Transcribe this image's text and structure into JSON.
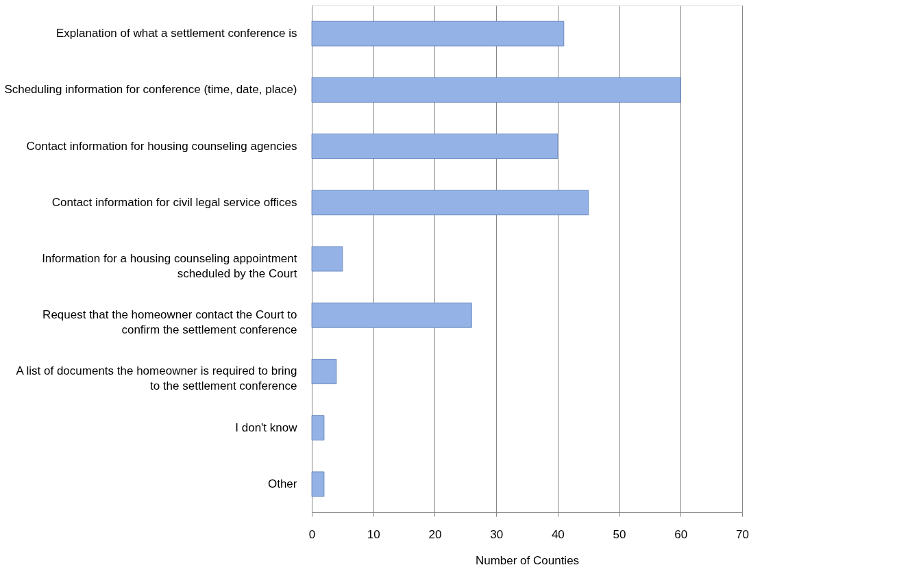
{
  "chart_data": {
    "type": "bar",
    "orientation": "horizontal",
    "xlabel": "Number of Counties",
    "categories": [
      "Explanation of what a settlement conference is",
      "Scheduling information for conference (time, date, place)",
      "Contact information for housing counseling agencies",
      "Contact information for civil legal service offices",
      "Information for a housing counseling appointment scheduled by the Court",
      "Request that the homeowner contact the Court to confirm the settlement conference",
      "A list of documents the homeowner is required to bring to the settlement conference",
      "I don't know",
      "Other"
    ],
    "values": [
      41,
      60,
      40,
      45,
      5,
      26,
      4,
      2,
      2
    ],
    "color": "#94b2e6",
    "xlim": [
      0,
      70
    ],
    "xticks": [
      0,
      10,
      20,
      30,
      40,
      50,
      60,
      70
    ],
    "grid": "x"
  }
}
